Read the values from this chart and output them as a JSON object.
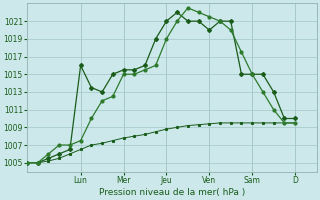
{
  "xlabel": "Pression niveau de la mer( hPa )",
  "bg_color": "#cce8ea",
  "grid_color": "#aacccc",
  "line_color1": "#1a5c1a",
  "line_color2": "#2d7a2d",
  "line_color3": "#1a5c1a",
  "ylim": [
    1004.0,
    1023.0
  ],
  "yticks": [
    1005,
    1007,
    1009,
    1011,
    1013,
    1015,
    1017,
    1019,
    1021
  ],
  "day_labels": [
    "Lun",
    "Mer",
    "Jeu",
    "Ven",
    "Sam",
    "D"
  ],
  "day_positions": [
    2.5,
    4.5,
    6.5,
    8.5,
    10.5,
    12.5
  ],
  "xlim": [
    0,
    13.5
  ],
  "series1_x": [
    0.0,
    0.5,
    1.0,
    1.5,
    2.0,
    2.5,
    3.0,
    3.5,
    4.0,
    4.5,
    5.0,
    5.5,
    6.0,
    6.5,
    7.0,
    7.5,
    8.0,
    8.5,
    9.0,
    9.5,
    10.0,
    10.5,
    11.0,
    11.5,
    12.0,
    12.5
  ],
  "series1_y": [
    1005,
    1005,
    1005.5,
    1006,
    1006.5,
    1016,
    1013.5,
    1013,
    1015,
    1015.5,
    1015.5,
    1016,
    1019,
    1021,
    1022,
    1021,
    1021,
    1020,
    1021,
    1021,
    1015,
    1015,
    1015,
    1013,
    1010,
    1010
  ],
  "series2_x": [
    0.0,
    0.5,
    1.0,
    1.5,
    2.0,
    2.5,
    3.0,
    3.5,
    4.0,
    4.5,
    5.0,
    5.5,
    6.0,
    6.5,
    7.0,
    7.5,
    8.0,
    8.5,
    9.0,
    9.5,
    10.0,
    10.5,
    11.0,
    11.5,
    12.0,
    12.5
  ],
  "series2_y": [
    1005,
    1005,
    1006,
    1007,
    1007,
    1007.5,
    1010,
    1012,
    1012.5,
    1015,
    1015,
    1015.5,
    1016,
    1019,
    1021,
    1022.5,
    1022,
    1021.5,
    1021,
    1020,
    1017.5,
    1015,
    1013,
    1011,
    1009.5,
    1009.5
  ],
  "series3_x": [
    0.0,
    0.5,
    1.0,
    1.5,
    2.0,
    2.5,
    3.0,
    3.5,
    4.0,
    4.5,
    5.0,
    5.5,
    6.0,
    6.5,
    7.0,
    7.5,
    8.0,
    8.5,
    9.0,
    9.5,
    10.0,
    10.5,
    11.0,
    11.5,
    12.0,
    12.5
  ],
  "series3_y": [
    1005,
    1005,
    1005.2,
    1005.5,
    1006,
    1006.5,
    1007,
    1007.2,
    1007.5,
    1007.8,
    1008,
    1008.2,
    1008.5,
    1008.8,
    1009,
    1009.2,
    1009.3,
    1009.4,
    1009.5,
    1009.5,
    1009.5,
    1009.5,
    1009.5,
    1009.5,
    1009.5,
    1009.5
  ]
}
